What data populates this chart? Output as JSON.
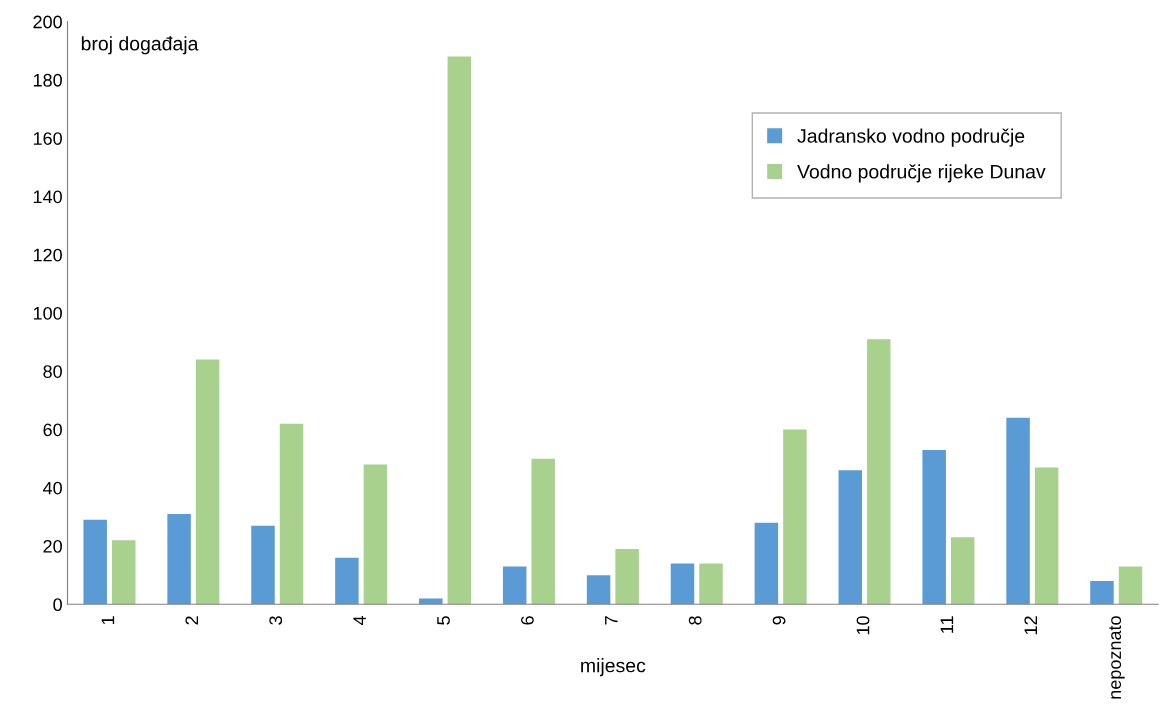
{
  "chart_data": {
    "type": "bar",
    "ylabel": "broj događaja",
    "xlabel": "mijesec",
    "categories": [
      "1",
      "2",
      "3",
      "4",
      "5",
      "6",
      "7",
      "8",
      "9",
      "10",
      "11",
      "12",
      "nepoznato"
    ],
    "series": [
      {
        "name": "Jadransko vodno područje",
        "color": "#5b9bd5",
        "values": [
          29,
          31,
          27,
          16,
          2,
          13,
          10,
          14,
          28,
          46,
          53,
          64,
          8
        ]
      },
      {
        "name": "Vodno područje rijeke Dunav",
        "color": "#a9d18e",
        "values": [
          22,
          84,
          62,
          48,
          188,
          50,
          19,
          14,
          60,
          91,
          23,
          47,
          13
        ]
      }
    ],
    "ylim": [
      0,
      200
    ],
    "yticks": [
      0,
      20,
      40,
      60,
      80,
      100,
      120,
      140,
      160,
      180,
      200
    ],
    "grid": false,
    "legend": "top right"
  }
}
